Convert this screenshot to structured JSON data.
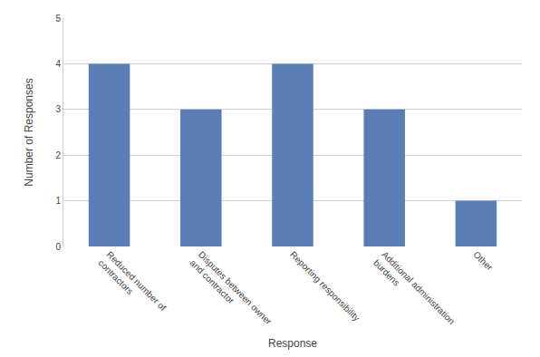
{
  "chart_data": {
    "type": "bar",
    "categories": [
      "Reduced number of\ncontractors",
      "Disputes between owner\nand contractor",
      "Reporting responsibility",
      "Additional administration\nburdens",
      "Other"
    ],
    "values": [
      4,
      3,
      4,
      3,
      1
    ],
    "color": "#5b7fb5",
    "xlabel": "Response",
    "ylabel": "Number of Responses",
    "ylim": [
      0,
      5
    ],
    "yticks": [
      0,
      1,
      2,
      3,
      4,
      5
    ],
    "grid": true
  }
}
